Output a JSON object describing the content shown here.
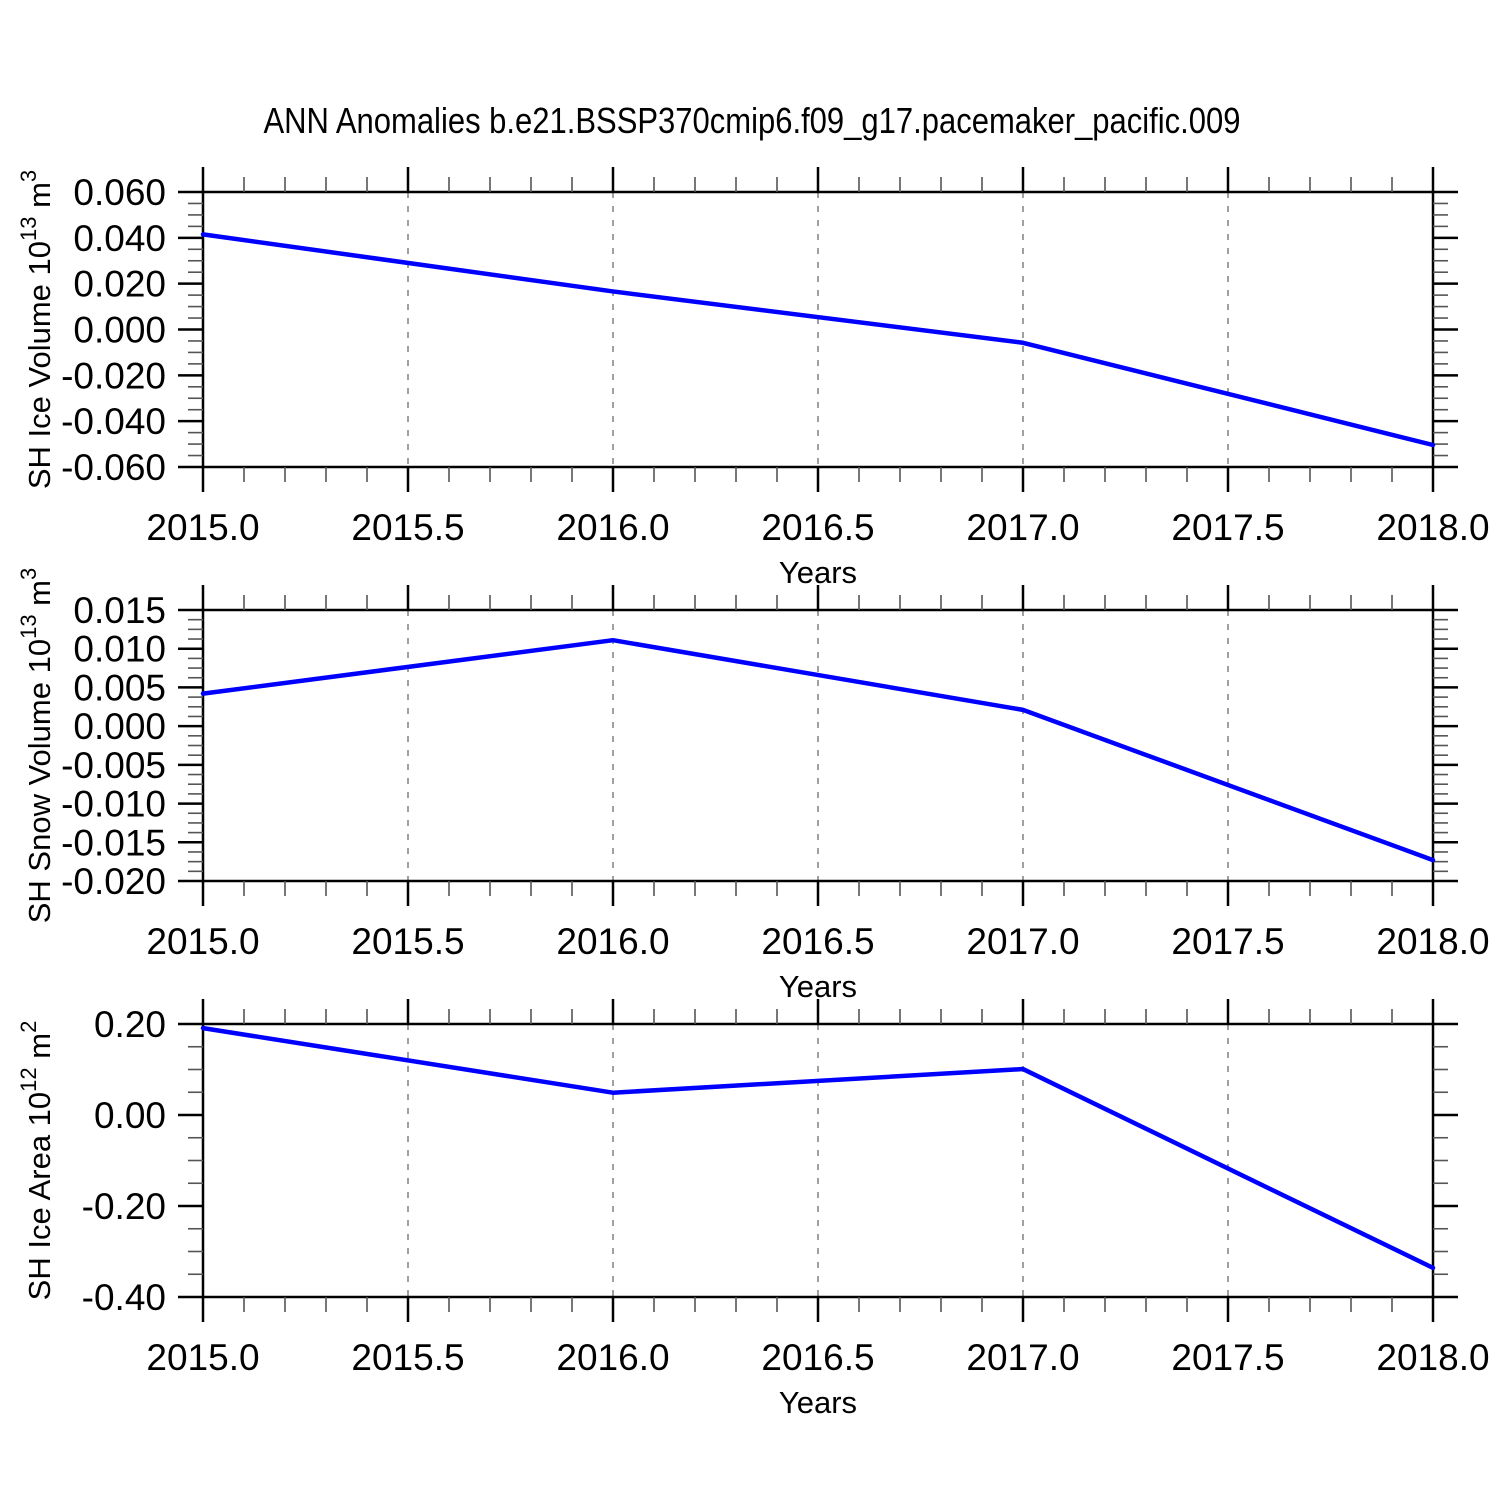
{
  "title": "ANN Anomalies b.e21.BSSP370cmip6.f09_g17.pacemaker_pacific.009",
  "figure": {
    "background": "#ffffff"
  },
  "colors": {
    "axis": "#000000",
    "minor_tick": "#555555",
    "grid": "#888888",
    "line": "#0000ff"
  },
  "xlabel": "Years",
  "chart_data": [
    {
      "type": "line",
      "name": "sh-ice-volume",
      "ylabel": "SH Ice Volume 10^13 m^3",
      "ylabel_parts": [
        {
          "t": "SH Ice Volume 10"
        },
        {
          "sup": "13"
        },
        {
          "t": " m"
        },
        {
          "sup": "3"
        }
      ],
      "x": [
        2015,
        2016,
        2017,
        2018
      ],
      "y": [
        0.0415,
        0.0166,
        -0.0058,
        -0.0504
      ],
      "xlim": [
        2015,
        2018
      ],
      "ylim": [
        -0.06,
        0.06
      ],
      "xtick_values": [
        2015.0,
        2015.5,
        2016.0,
        2016.5,
        2017.0,
        2017.5,
        2018.0
      ],
      "xtick_labels": [
        "2015.0",
        "2015.5",
        "2016.0",
        "2016.5",
        "2017.0",
        "2017.5",
        "2018.0"
      ],
      "xminor_divisions": 5,
      "ytick_values": [
        0.06,
        0.04,
        0.02,
        0.0,
        -0.02,
        -0.04,
        -0.06
      ],
      "ytick_labels": [
        "0.060",
        "0.040",
        "0.020",
        "0.000",
        "-0.020",
        "-0.040",
        "-0.060"
      ],
      "yminor_divisions": 4,
      "xlabel": "Years",
      "grid": "vertical-dashed-at-interior-major-x",
      "line_color": "#0000ff"
    },
    {
      "type": "line",
      "name": "sh-snow-volume",
      "ylabel": "SH Snow Volume 10^13 m^3",
      "ylabel_parts": [
        {
          "t": "SH Snow Volume 10"
        },
        {
          "sup": "13"
        },
        {
          "t": " m"
        },
        {
          "sup": "3"
        }
      ],
      "x": [
        2015,
        2016,
        2017,
        2018
      ],
      "y": [
        0.0042,
        0.0111,
        0.0021,
        -0.0173
      ],
      "xlim": [
        2015,
        2018
      ],
      "ylim": [
        -0.02,
        0.015
      ],
      "xtick_values": [
        2015.0,
        2015.5,
        2016.0,
        2016.5,
        2017.0,
        2017.5,
        2018.0
      ],
      "xtick_labels": [
        "2015.0",
        "2015.5",
        "2016.0",
        "2016.5",
        "2017.0",
        "2017.5",
        "2018.0"
      ],
      "xminor_divisions": 5,
      "ytick_values": [
        0.015,
        0.01,
        0.005,
        0.0,
        -0.005,
        -0.01,
        -0.015,
        -0.02
      ],
      "ytick_labels": [
        "0.015",
        "0.010",
        "0.005",
        "0.000",
        "-0.005",
        "-0.010",
        "-0.015",
        "-0.020"
      ],
      "yminor_divisions": 4,
      "xlabel": "Years",
      "grid": "vertical-dashed-at-interior-major-x",
      "line_color": "#0000ff"
    },
    {
      "type": "line",
      "name": "sh-ice-area",
      "ylabel": "SH Ice Area 10^12 m^2",
      "ylabel_parts": [
        {
          "t": "SH Ice Area 10"
        },
        {
          "sup": "12"
        },
        {
          "t": " m"
        },
        {
          "sup": "2"
        }
      ],
      "x": [
        2015,
        2016,
        2017,
        2018
      ],
      "y": [
        0.191,
        0.049,
        0.101,
        -0.336
      ],
      "xlim": [
        2015,
        2018
      ],
      "ylim": [
        -0.4,
        0.2
      ],
      "xtick_values": [
        2015.0,
        2015.5,
        2016.0,
        2016.5,
        2017.0,
        2017.5,
        2018.0
      ],
      "xtick_labels": [
        "2015.0",
        "2015.5",
        "2016.0",
        "2016.5",
        "2017.0",
        "2017.5",
        "2018.0"
      ],
      "xminor_divisions": 5,
      "ytick_values": [
        0.2,
        0.0,
        -0.2,
        -0.4
      ],
      "ytick_labels": [
        "0.20",
        "0.00",
        "-0.20",
        "-0.40"
      ],
      "yminor_divisions": 4,
      "xlabel": "Years",
      "grid": "vertical-dashed-at-interior-major-x",
      "line_color": "#0000ff"
    }
  ]
}
